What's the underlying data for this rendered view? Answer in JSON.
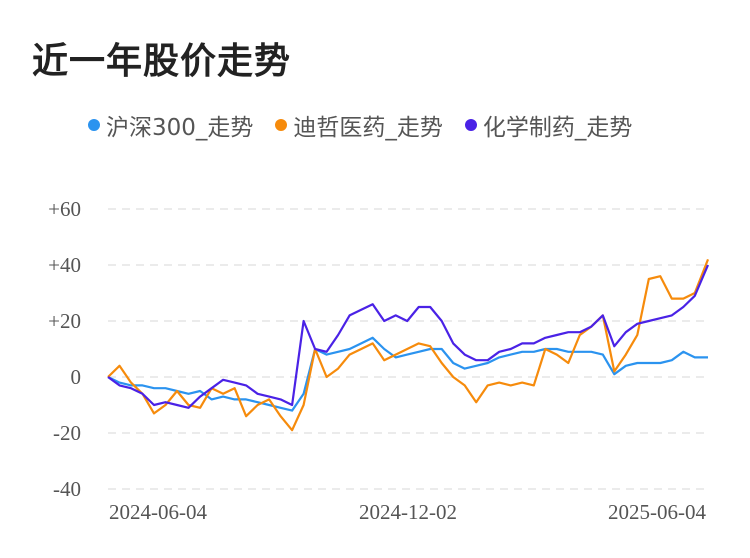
{
  "title": "近一年股价走势",
  "chart_data": {
    "type": "line",
    "title": "近一年股价走势",
    "ylim": [
      -40,
      60
    ],
    "yticks": [
      "+60",
      "+40",
      "+20",
      "0",
      "-20",
      "-40"
    ],
    "ytick_values": [
      60,
      40,
      20,
      0,
      -20,
      -40
    ],
    "xticks": [
      "2024-06-04",
      "2024-12-02",
      "2025-06-04"
    ],
    "grid": true,
    "legend": "top",
    "x": [
      "2024-06-04",
      "2024-06-11",
      "2024-06-18",
      "2024-06-25",
      "2024-07-02",
      "2024-07-09",
      "2024-07-16",
      "2024-07-23",
      "2024-07-30",
      "2024-08-06",
      "2024-08-13",
      "2024-08-20",
      "2024-08-27",
      "2024-09-03",
      "2024-09-10",
      "2024-09-17",
      "2024-09-24",
      "2024-10-01",
      "2024-10-08",
      "2024-10-15",
      "2024-10-22",
      "2024-10-29",
      "2024-11-05",
      "2024-11-12",
      "2024-11-19",
      "2024-11-26",
      "2024-12-03",
      "2024-12-10",
      "2024-12-17",
      "2024-12-24",
      "2024-12-31",
      "2025-01-07",
      "2025-01-14",
      "2025-01-21",
      "2025-01-28",
      "2025-02-04",
      "2025-02-11",
      "2025-02-18",
      "2025-02-25",
      "2025-03-04",
      "2025-03-11",
      "2025-03-18",
      "2025-03-25",
      "2025-04-01",
      "2025-04-08",
      "2025-04-15",
      "2025-04-22",
      "2025-04-29",
      "2025-05-06",
      "2025-05-13",
      "2025-05-20",
      "2025-05-27",
      "2025-06-04"
    ],
    "series": [
      {
        "name": "沪深300_走势",
        "color": "#2b93ef",
        "values": [
          0,
          -2,
          -3,
          -3,
          -4,
          -4,
          -5,
          -6,
          -5,
          -8,
          -7,
          -8,
          -8,
          -9,
          -10,
          -11,
          -12,
          -6,
          10,
          8,
          9,
          10,
          12,
          14,
          10,
          7,
          8,
          9,
          10,
          10,
          5,
          3,
          4,
          5,
          7,
          8,
          9,
          9,
          10,
          10,
          9,
          9,
          9,
          8,
          1,
          4,
          5,
          5,
          5,
          6,
          9,
          7,
          7
        ]
      },
      {
        "name": "迪哲医药_走势",
        "color": "#f68b0c",
        "values": [
          0,
          4,
          -2,
          -6,
          -13,
          -10,
          -5,
          -10,
          -11,
          -4,
          -6,
          -4,
          -14,
          -10,
          -8,
          -14,
          -19,
          -10,
          10,
          0,
          3,
          8,
          10,
          12,
          6,
          8,
          10,
          12,
          11,
          5,
          0,
          -3,
          -9,
          -3,
          -2,
          -3,
          -2,
          -3,
          10,
          8,
          5,
          15,
          18,
          22,
          2,
          8,
          15,
          35,
          36,
          28,
          28,
          30,
          42
        ]
      },
      {
        "name": "化学制药_走势",
        "color": "#4a22e6",
        "values": [
          0,
          -3,
          -4,
          -6,
          -10,
          -9,
          -10,
          -11,
          -7,
          -4,
          -1,
          -2,
          -3,
          -6,
          -7,
          -8,
          -10,
          20,
          10,
          9,
          15,
          22,
          24,
          26,
          20,
          22,
          20,
          25,
          25,
          20,
          12,
          8,
          6,
          6,
          9,
          10,
          12,
          12,
          14,
          15,
          16,
          16,
          18,
          22,
          11,
          16,
          19,
          20,
          21,
          22,
          25,
          29,
          40
        ]
      }
    ]
  }
}
